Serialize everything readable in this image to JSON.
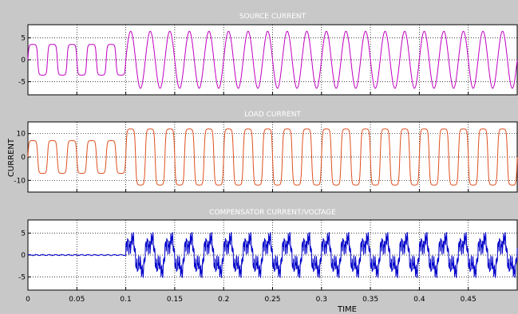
{
  "chart_data": [
    {
      "type": "line",
      "title": "SOURCE CURRENT",
      "xlim": [
        0,
        0.5
      ],
      "ylim": [
        -8,
        8
      ],
      "xticks": [
        "0",
        "0.05",
        "0.1",
        "0.15",
        "0.2",
        "0.25",
        "0.3",
        "0.35",
        "0.4",
        "0.45"
      ],
      "xtick_values": [
        0,
        0.05,
        0.1,
        0.15,
        0.2,
        0.25,
        0.3,
        0.35,
        0.4,
        0.45
      ],
      "yticks": [
        "5",
        "0",
        "-5"
      ],
      "ytick_values": [
        5,
        0,
        -5
      ],
      "grid": true,
      "series": [
        {
          "color": "#c000c0",
          "frequency_hz": 50,
          "segments": [
            {
              "x_start": 0,
              "x_end": 0.1,
              "shape": "flat-top",
              "amplitude": 3.5
            },
            {
              "x_start": 0.1,
              "x_end": 0.5,
              "shape": "sine",
              "amplitude": 6.5
            }
          ]
        }
      ]
    },
    {
      "type": "line",
      "title": "LOAD CURRENT",
      "xlim": [
        0,
        0.5
      ],
      "ylim": [
        -15,
        15
      ],
      "xticks": [
        "0",
        "0.05",
        "0.1",
        "0.15",
        "0.2",
        "0.25",
        "0.3",
        "0.35",
        "0.4",
        "0.45"
      ],
      "xtick_values": [
        0,
        0.05,
        0.1,
        0.15,
        0.2,
        0.25,
        0.3,
        0.35,
        0.4,
        0.45
      ],
      "yticks": [
        "10",
        "0",
        "-10"
      ],
      "ytick_values": [
        10,
        0,
        -10
      ],
      "ylabel": "CURRENT",
      "grid": true,
      "series": [
        {
          "color": "#e05020",
          "frequency_hz": 50,
          "segments": [
            {
              "x_start": 0,
              "x_end": 0.1,
              "shape": "flat-top",
              "amplitude": 7
            },
            {
              "x_start": 0.1,
              "x_end": 0.5,
              "shape": "flat-top",
              "amplitude": 12
            }
          ]
        }
      ]
    },
    {
      "type": "line",
      "title": "COMPENSATOR CURRENT/VOLTAGE",
      "xlim": [
        0,
        0.5
      ],
      "ylim": [
        -8,
        8
      ],
      "xticks": [
        "0",
        "0.05",
        "0.1",
        "0.15",
        "0.2",
        "0.25",
        "0.3",
        "0.35",
        "0.4",
        "0.45"
      ],
      "xtick_values": [
        0,
        0.05,
        0.1,
        0.15,
        0.2,
        0.25,
        0.3,
        0.35,
        0.4,
        0.45
      ],
      "yticks": [
        "5",
        "0",
        "-5"
      ],
      "ytick_values": [
        5,
        0,
        -5
      ],
      "xlabel": "TIME",
      "grid": true,
      "series": [
        {
          "color": "#0000c8",
          "frequency_hz": 50,
          "segments": [
            {
              "x_start": 0,
              "x_end": 0.1,
              "shape": "near-zero",
              "amplitude": 0.2
            },
            {
              "x_start": 0.1,
              "x_end": 0.5,
              "shape": "harmonic-noise",
              "amplitude": 6
            }
          ]
        }
      ]
    }
  ]
}
